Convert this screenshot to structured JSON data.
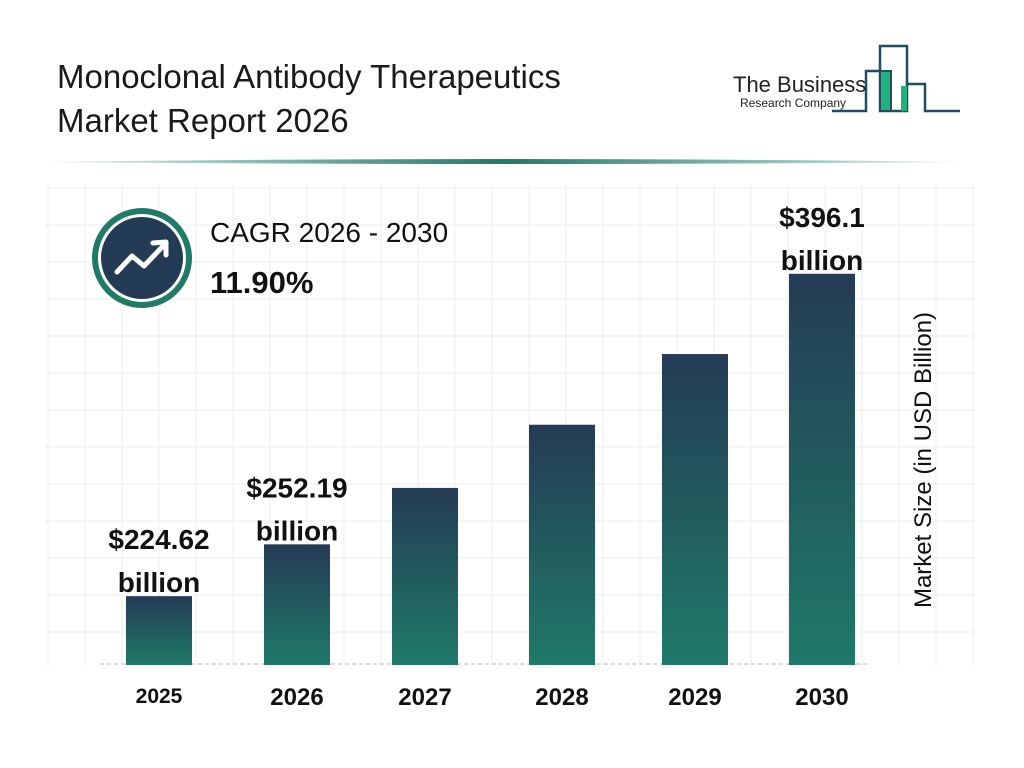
{
  "header": {
    "title_line1": "Monoclonal Antibody Therapeutics",
    "title_line2": "Market Report 2026",
    "logo_line1": "The Business",
    "logo_line2": "Research Company"
  },
  "cagr": {
    "label": "CAGR 2026 - 2030",
    "value": "11.90%",
    "icon": "trend-up-arrow-icon"
  },
  "colors": {
    "bar_top": "#243b55",
    "bar_bottom": "#1f7a68",
    "accent": "#1f7a68",
    "logo_green": "#20b27e",
    "logo_navy": "#1f4e5f"
  },
  "chart_data": {
    "type": "bar",
    "categories": [
      "2025",
      "2026",
      "2027",
      "2028",
      "2029",
      "2030"
    ],
    "values": [
      224.62,
      252.19,
      282.2,
      315.8,
      353.4,
      396.1
    ],
    "data_labels": [
      "$224.62 billion",
      "$252.19 billion",
      "",
      "",
      "",
      "$396.1 billion"
    ],
    "data_label_lines": [
      [
        "$224.62",
        "billion"
      ],
      [
        "$252.19",
        "billion"
      ],
      [],
      [],
      [],
      [
        "$396.1",
        "billion"
      ]
    ],
    "ylabel": "Market Size (in USD Billion)",
    "xlabel": "",
    "grid": true
  }
}
